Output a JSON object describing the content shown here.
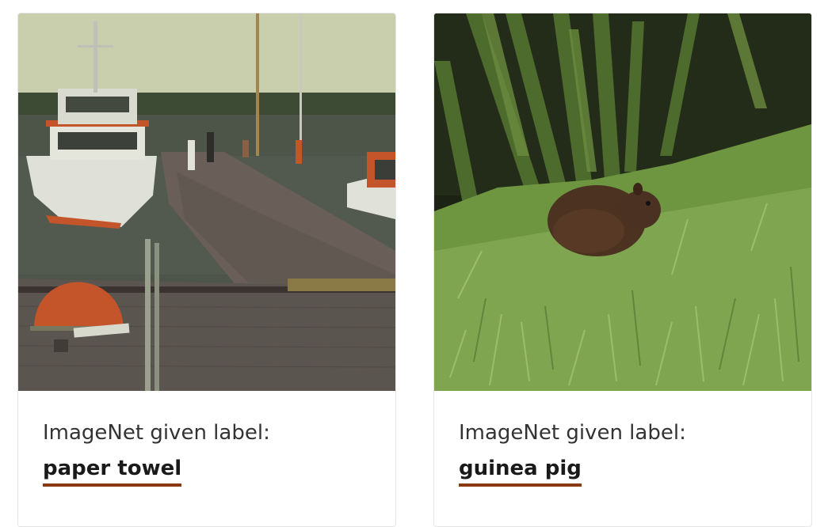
{
  "cards": [
    {
      "photo_subject": "boat-dock-photo",
      "caption": "ImageNet given label:",
      "label": "paper towel"
    },
    {
      "photo_subject": "rodent-in-grass-photo",
      "caption": "ImageNet given label:",
      "label": "guinea pig"
    }
  ],
  "colors": {
    "label_underline": "#8a3a12",
    "caption_text": "#333333",
    "label_text": "#1a1a1a"
  }
}
